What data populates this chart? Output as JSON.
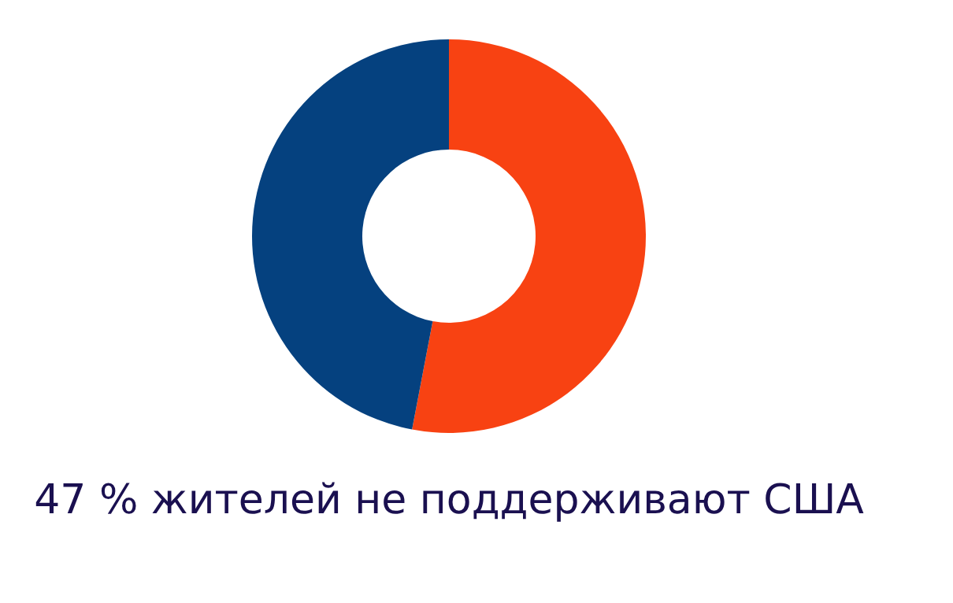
{
  "chart_data": {
    "type": "donut",
    "title": "47 % жителей не поддерживают США",
    "categories": [
      null,
      null
    ],
    "values": [
      53,
      47
    ],
    "colors": [
      "#f84212",
      "#05417f"
    ],
    "legend": false
  }
}
